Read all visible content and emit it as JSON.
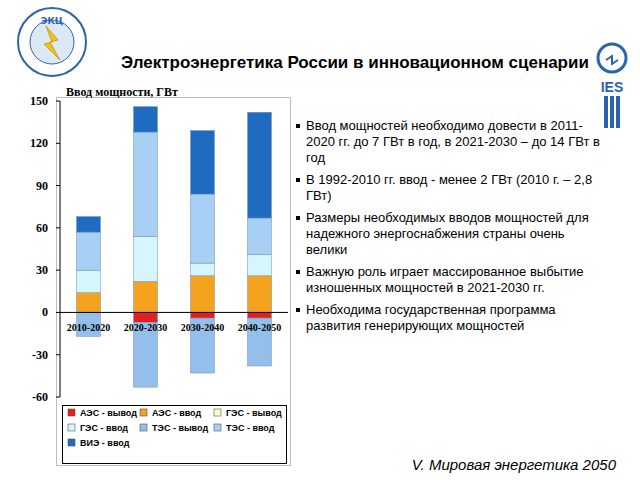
{
  "chart_data": {
    "type": "bar",
    "title": "Электроэнергетика России в инновационном сценарии",
    "y_label": "Ввод мощности, ГВт",
    "categories": [
      "2010-2020",
      "2020-2030",
      "2030-2040",
      "2040-2050"
    ],
    "series": [
      {
        "name": "АЭС - вывод",
        "color": "#e3201b",
        "values": [
          0,
          -7,
          -4,
          -4
        ]
      },
      {
        "name": "АЭС - ввод",
        "color": "#f5a21e",
        "values": [
          14,
          22,
          26,
          26
        ]
      },
      {
        "name": "ГЭС - вывод",
        "color": "#ffffcc",
        "values": [
          0,
          0,
          0,
          0
        ]
      },
      {
        "name": "ГЭС - ввод",
        "color": "#d6f6fb",
        "values": [
          16,
          32,
          9,
          15
        ]
      },
      {
        "name": "ТЭС - вывод",
        "color": "#93bfea",
        "values": [
          -17,
          -46,
          -39,
          -34
        ]
      },
      {
        "name": "ТЭС - ввод",
        "color": "#a8d0f4",
        "values": [
          27,
          74,
          49,
          26
        ]
      },
      {
        "name": "ВИЭ - ввод",
        "color": "#1f6bbf",
        "values": [
          11,
          18,
          45,
          75
        ]
      }
    ],
    "ylim": [
      -60,
      150
    ],
    "yticks": [
      -60,
      -30,
      0,
      30,
      60,
      90,
      120,
      150
    ],
    "stacked": true,
    "grid": false,
    "legend": "bottom"
  },
  "bullets": [
    "Ввод мощностей необходимо довести в 2011-2020 гг. до 7 ГВт в год, в 2021-2030 – до 14 ГВт в год",
    "В 1992-2010 гг. ввод - менее 2 ГВт (2010 г. – 2,8 ГВт)",
    "Размеры необходимых вводов мощностей для надежного энергоснабжения страны очень велики",
    "Важную роль играет массированное выбытие изношенных мощностей в 2021-2030 гг.",
    "Необходима государственная программа развития генерирующих мощностей"
  ],
  "footer": "V. Мировая энергетика 2050",
  "logos": [
    "ЭКЦ",
    "IES"
  ]
}
